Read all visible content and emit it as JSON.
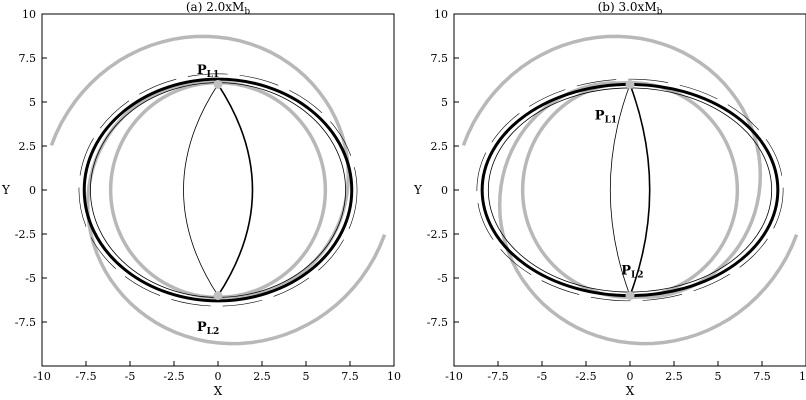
{
  "chart_data": [
    {
      "type": "scatter",
      "title": "(a) 2.0xM",
      "title_sub": "b",
      "xlabel": "X",
      "ylabel": "Y",
      "xlim": [
        -10,
        10
      ],
      "ylim": [
        -10,
        10
      ],
      "xticks": [
        "-10",
        "-7.5",
        "-5",
        "-2.5",
        "0",
        "2.5",
        "5",
        "7.5",
        "10"
      ],
      "yticks": [
        "10",
        "7.5",
        "5",
        "2.5",
        "0",
        "-2.5",
        "-5",
        "-7.5"
      ],
      "points": [
        {
          "label": "P",
          "sub": "L1",
          "x": 0.0,
          "y": 6.0,
          "label_x": -1.2,
          "label_y": 6.6
        },
        {
          "label": "P",
          "sub": "L2",
          "x": 0.0,
          "y": -6.0,
          "label_x": -1.2,
          "label_y": -8.0
        }
      ],
      "guide_circle": {
        "cx": 0,
        "cy": 0,
        "r": 6.1,
        "color": "#b8b8b8"
      },
      "spiral_arms": [
        {
          "from_angle_deg": 95,
          "to_angle_deg": 345,
          "start_r": 6.1,
          "end_r": 9.8,
          "color": "#b8b8b8"
        },
        {
          "from_angle_deg": 275,
          "to_angle_deg": 525,
          "start_r": 6.1,
          "end_r": 9.8,
          "color": "#b8b8b8"
        }
      ],
      "ring": {
        "rx": 7.6,
        "ry": 6.3,
        "color": "#000000"
      },
      "inner_arc_bulge": 2.8
    },
    {
      "type": "scatter",
      "title": "(b) 3.0xM",
      "title_sub": "b",
      "xlabel": "X",
      "ylabel": "Y",
      "xlim": [
        -10,
        10
      ],
      "ylim": [
        -10,
        10
      ],
      "xticks": [
        "-10",
        "-7.5",
        "-5",
        "-2.5",
        "0",
        "2.5",
        "5",
        "7.5",
        "10"
      ],
      "yticks": [
        "10",
        "7.5",
        "5",
        "2.5",
        "0",
        "-2.5",
        "-5",
        "-7.5"
      ],
      "points": [
        {
          "label": "P",
          "sub": "L1",
          "x": 0.0,
          "y": 6.0,
          "label_x": -2.0,
          "label_y": 4.0
        },
        {
          "label": "P",
          "sub": "L2",
          "x": 0.0,
          "y": -6.0,
          "label_x": -0.5,
          "label_y": -4.8
        }
      ],
      "guide_circle": {
        "cx": 0,
        "cy": 0,
        "r": 6.1,
        "color": "#b8b8b8"
      },
      "spiral_arms": [
        {
          "from_angle_deg": 95,
          "to_angle_deg": 345,
          "start_r": 6.1,
          "end_r": 9.8,
          "color": "#b8b8b8"
        },
        {
          "from_angle_deg": 275,
          "to_angle_deg": 525,
          "start_r": 6.1,
          "end_r": 9.8,
          "color": "#b8b8b8"
        }
      ],
      "ring": {
        "rx": 8.4,
        "ry": 6.0,
        "color": "#000000"
      },
      "inner_arc_bulge": 1.6
    }
  ]
}
